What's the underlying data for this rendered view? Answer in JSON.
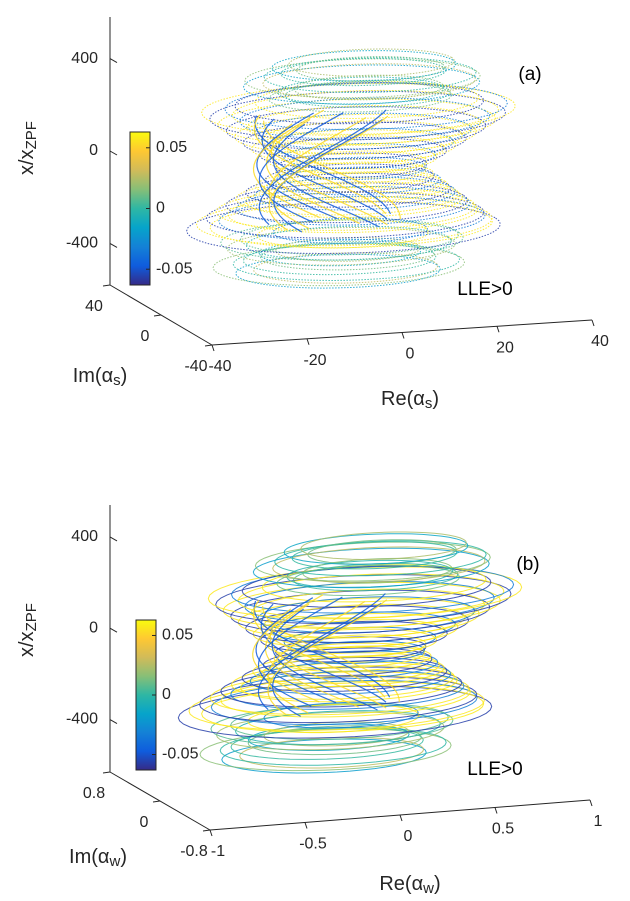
{
  "chart_data": [
    {
      "type": "line3d",
      "panel_label": "(a)",
      "annotation": "LLE>0",
      "xlabel": [
        "Re(α",
        "s",
        ")"
      ],
      "ylabel": [
        "Im(α",
        "s",
        ")"
      ],
      "zlabel": [
        "x/x",
        "ZPF"
      ],
      "xlim": [
        -40,
        40
      ],
      "xticks": [
        -40,
        -20,
        0,
        20,
        40
      ],
      "ylim": [
        -40,
        40
      ],
      "yticks": [
        -40,
        0,
        40
      ],
      "zlim": [
        -580,
        580
      ],
      "zticks": [
        -400,
        0,
        400
      ],
      "colorbar": {
        "lim": [
          -0.063,
          0.063
        ],
        "ticks": [
          -0.05,
          0,
          0.05
        ],
        "colors": [
          "#352a87",
          "#0f5cdd",
          "#1481d6",
          "#06a4ca",
          "#2eb7a4",
          "#87bf77",
          "#d1bb59",
          "#fec832",
          "#f9fb0e"
        ]
      }
    },
    {
      "type": "line3d",
      "panel_label": "(b)",
      "annotation": "LLE>0",
      "xlabel": [
        "Re(α",
        "w",
        ")"
      ],
      "ylabel": [
        "Im(α",
        "w",
        ")"
      ],
      "zlabel": [
        "x/x",
        "ZPF"
      ],
      "xlim": [
        -1,
        1
      ],
      "xticks": [
        -1,
        -0.5,
        0,
        0.5,
        1
      ],
      "ylim": [
        -0.8,
        0.8
      ],
      "yticks": [
        -0.8,
        0,
        0.8
      ],
      "zlim": [
        -630,
        540
      ],
      "zticks": [
        -400,
        0,
        400
      ],
      "colorbar": {
        "lim": [
          -0.063,
          0.063
        ],
        "ticks": [
          -0.05,
          0,
          0.05
        ],
        "colors": [
          "#352a87",
          "#0f5cdd",
          "#1481d6",
          "#06a4ca",
          "#2eb7a4",
          "#87bf77",
          "#d1bb59",
          "#fec832",
          "#f9fb0e"
        ]
      }
    }
  ]
}
